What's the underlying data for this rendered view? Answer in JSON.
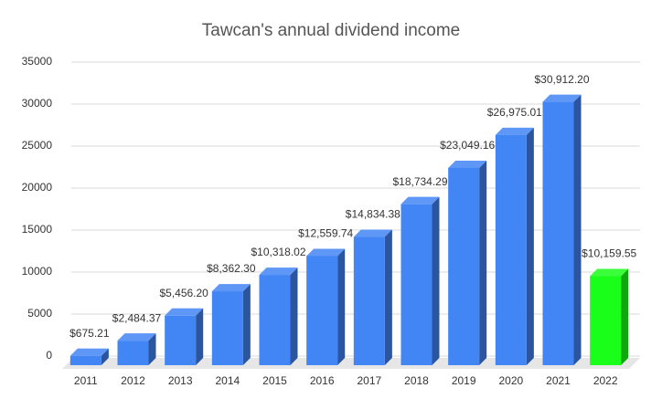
{
  "chart_data": {
    "type": "bar3d",
    "title": "Tawcan's annual dividend income",
    "categories": [
      "2011",
      "2012",
      "2013",
      "2014",
      "2015",
      "2016",
      "2017",
      "2018",
      "2019",
      "2020",
      "2021",
      "2022"
    ],
    "values": [
      675.21,
      2484.37,
      5456.2,
      8362.3,
      10318.02,
      12559.74,
      14834.38,
      18734.29,
      23049.16,
      26975.01,
      30912.2,
      10159.55
    ],
    "value_labels": [
      "$675.21",
      "$2,484.37",
      "$5,456.20",
      "$8,362.30",
      "$10,318.02",
      "$12,559.74",
      "$14,834.38",
      "$18,734.29",
      "$23,049.16",
      "$26,975.01",
      "$30,912.20",
      "$10,159.55"
    ],
    "colors": [
      "#4285f4",
      "#4285f4",
      "#4285f4",
      "#4285f4",
      "#4285f4",
      "#4285f4",
      "#4285f4",
      "#4285f4",
      "#4285f4",
      "#4285f4",
      "#4285f4",
      "#1aff1a"
    ],
    "ylim": [
      0,
      35000
    ],
    "yticks": [
      0,
      5000,
      10000,
      15000,
      20000,
      25000,
      30000,
      35000
    ],
    "grid": true
  }
}
